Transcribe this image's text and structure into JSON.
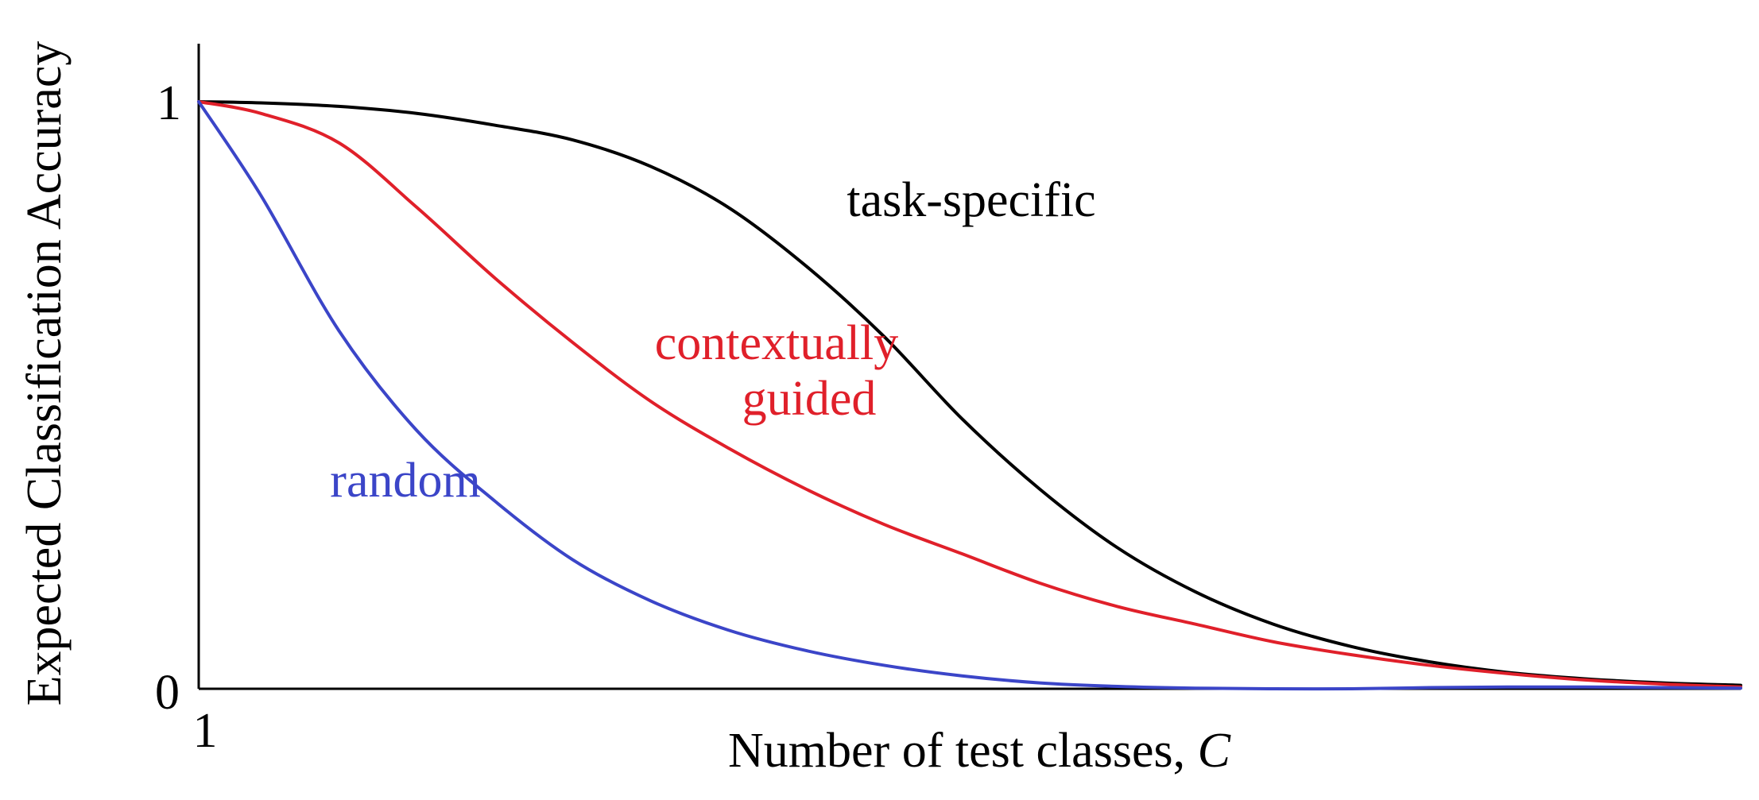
{
  "chart_data": {
    "type": "line",
    "xlabel": {
      "text": "Number of test classes, ",
      "variable": "C"
    },
    "ylabel": "Expected Classification Accuracy",
    "xlim": [
      1,
      100
    ],
    "ylim": [
      0,
      1
    ],
    "x_ticks": [
      {
        "value": 1,
        "label": "1"
      }
    ],
    "y_ticks": [
      {
        "value": 0,
        "label": "0"
      },
      {
        "value": 1,
        "label": "1"
      }
    ],
    "grid": false,
    "legend": "none",
    "annotations": [
      {
        "series": "task-specific",
        "lines": [
          "task-specific"
        ],
        "color": "#000000"
      },
      {
        "series": "contextually guided",
        "lines": [
          "contextually",
          "guided"
        ],
        "color": "#e0202a"
      },
      {
        "series": "random",
        "lines": [
          "random"
        ],
        "color": "#3b45c8"
      }
    ],
    "series": [
      {
        "name": "task-specific",
        "color": "#000000",
        "x": [
          1,
          5,
          10,
          15,
          20,
          25,
          30,
          35,
          40,
          45,
          50,
          55,
          60,
          65,
          70,
          75,
          80,
          85,
          90,
          95,
          100
        ],
        "values": [
          1.0,
          0.998,
          0.992,
          0.98,
          0.96,
          0.935,
          0.89,
          0.82,
          0.72,
          0.6,
          0.46,
          0.34,
          0.24,
          0.165,
          0.11,
          0.072,
          0.046,
          0.028,
          0.017,
          0.01,
          0.006
        ]
      },
      {
        "name": "contextually guided",
        "color": "#e0202a",
        "x": [
          1,
          5,
          10,
          15,
          20,
          25,
          30,
          35,
          40,
          45,
          50,
          55,
          60,
          65,
          70,
          75,
          80,
          85,
          90,
          95,
          100
        ],
        "values": [
          1.0,
          0.98,
          0.93,
          0.82,
          0.7,
          0.59,
          0.49,
          0.41,
          0.34,
          0.28,
          0.23,
          0.18,
          0.14,
          0.11,
          0.08,
          0.058,
          0.04,
          0.026,
          0.015,
          0.008,
          0.003
        ]
      },
      {
        "name": "random",
        "color": "#3b45c8",
        "x": [
          1,
          5,
          10,
          15,
          20,
          25,
          30,
          35,
          40,
          45,
          50,
          55,
          60,
          65,
          70,
          75,
          80,
          85,
          90,
          95,
          100
        ],
        "values": [
          1.0,
          0.84,
          0.61,
          0.44,
          0.32,
          0.22,
          0.15,
          0.1,
          0.065,
          0.04,
          0.022,
          0.01,
          0.004,
          0.001,
          0.0,
          0.0,
          0.002,
          0.003,
          0.003,
          0.002,
          0.001
        ]
      }
    ]
  }
}
